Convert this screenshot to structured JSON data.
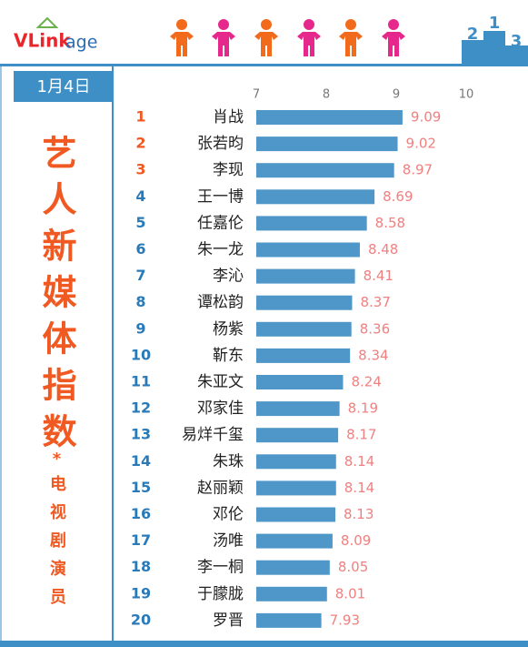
{
  "logo": [
    "VLink",
    "age"
  ],
  "podium": [
    2,
    1,
    3
  ],
  "chart_data": {
    "type": "bar",
    "orientation": "horizontal",
    "date": "1月4日",
    "title": "艺人新媒体指数",
    "separator": "*",
    "subtitle": "电视剧演员",
    "ranks": [
      1,
      2,
      3,
      4,
      5,
      6,
      7,
      8,
      9,
      10,
      11,
      12,
      13,
      14,
      15,
      16,
      17,
      18,
      19,
      20
    ],
    "categories": [
      "肖战",
      "张若昀",
      "李现",
      "王一博",
      "任嘉伦",
      "朱一龙",
      "李沁",
      "谭松韵",
      "杨紫",
      "靳东",
      "朱亚文",
      "邓家佳",
      "易烊千玺",
      "朱珠",
      "赵丽颖",
      "邓伦",
      "汤唯",
      "李一桐",
      "于朦胧",
      "罗晋"
    ],
    "values": [
      9.09,
      9.02,
      8.97,
      8.69,
      8.58,
      8.48,
      8.41,
      8.37,
      8.36,
      8.34,
      8.24,
      8.19,
      8.17,
      8.14,
      8.14,
      8.13,
      8.09,
      8.05,
      8.01,
      7.93
    ],
    "color": "#4f97c8",
    "label_color": "#f08080",
    "xlim": [
      7,
      10
    ],
    "xticks": [
      7,
      8,
      9,
      10
    ]
  }
}
